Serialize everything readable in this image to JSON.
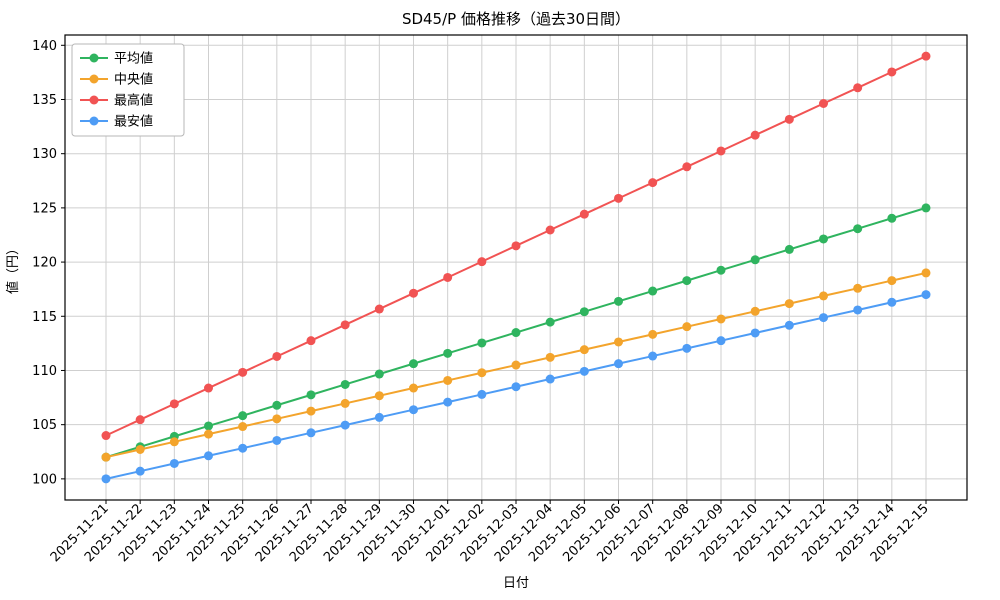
{
  "chart_data": {
    "type": "line",
    "title": "SD45/P 価格推移（過去30日間）",
    "xlabel": "日付",
    "ylabel": "値（円）",
    "x": [
      "2025-11-21",
      "2025-11-22",
      "2025-11-23",
      "2025-11-24",
      "2025-11-25",
      "2025-11-26",
      "2025-11-27",
      "2025-11-28",
      "2025-11-29",
      "2025-11-30",
      "2025-12-01",
      "2025-12-02",
      "2025-12-03",
      "2025-12-04",
      "2025-12-05",
      "2025-12-06",
      "2025-12-07",
      "2025-12-08",
      "2025-12-09",
      "2025-12-10",
      "2025-12-11",
      "2025-12-12",
      "2025-12-13",
      "2025-12-14",
      "2025-12-15"
    ],
    "series": [
      {
        "name": "平均値",
        "color": "#2fb45f",
        "values": [
          102,
          102.96,
          103.92,
          104.88,
          105.83,
          106.79,
          107.75,
          108.71,
          109.67,
          110.63,
          111.58,
          112.54,
          113.5,
          114.46,
          115.42,
          116.38,
          117.33,
          118.29,
          119.25,
          120.21,
          121.17,
          122.13,
          123.08,
          124.04,
          125
        ]
      },
      {
        "name": "中央値",
        "color": "#f3a42c",
        "values": [
          102,
          102.71,
          103.42,
          104.13,
          104.83,
          105.54,
          106.25,
          106.96,
          107.67,
          108.38,
          109.08,
          109.79,
          110.5,
          111.21,
          111.92,
          112.63,
          113.33,
          114.04,
          114.75,
          115.46,
          116.17,
          116.88,
          117.58,
          118.29,
          119
        ]
      },
      {
        "name": "最高値",
        "color": "#f15353",
        "values": [
          104,
          105.46,
          106.92,
          108.38,
          109.83,
          111.29,
          112.75,
          114.21,
          115.67,
          117.13,
          118.58,
          120.04,
          121.5,
          122.96,
          124.42,
          125.88,
          127.33,
          128.79,
          130.25,
          131.71,
          133.17,
          134.63,
          136.08,
          137.54,
          139
        ]
      },
      {
        "name": "最安値",
        "color": "#4e9cf5",
        "values": [
          100,
          100.71,
          101.42,
          102.13,
          102.83,
          103.54,
          104.25,
          104.96,
          105.67,
          106.38,
          107.08,
          107.79,
          108.5,
          109.21,
          109.92,
          110.63,
          111.33,
          112.04,
          112.75,
          113.46,
          114.17,
          114.88,
          115.58,
          116.29,
          117
        ]
      }
    ],
    "yticks": [
      100,
      105,
      110,
      115,
      120,
      125,
      130,
      135,
      140
    ],
    "ylim": [
      98.05,
      140.95
    ],
    "grid": true,
    "legend_position": "upper-left"
  }
}
